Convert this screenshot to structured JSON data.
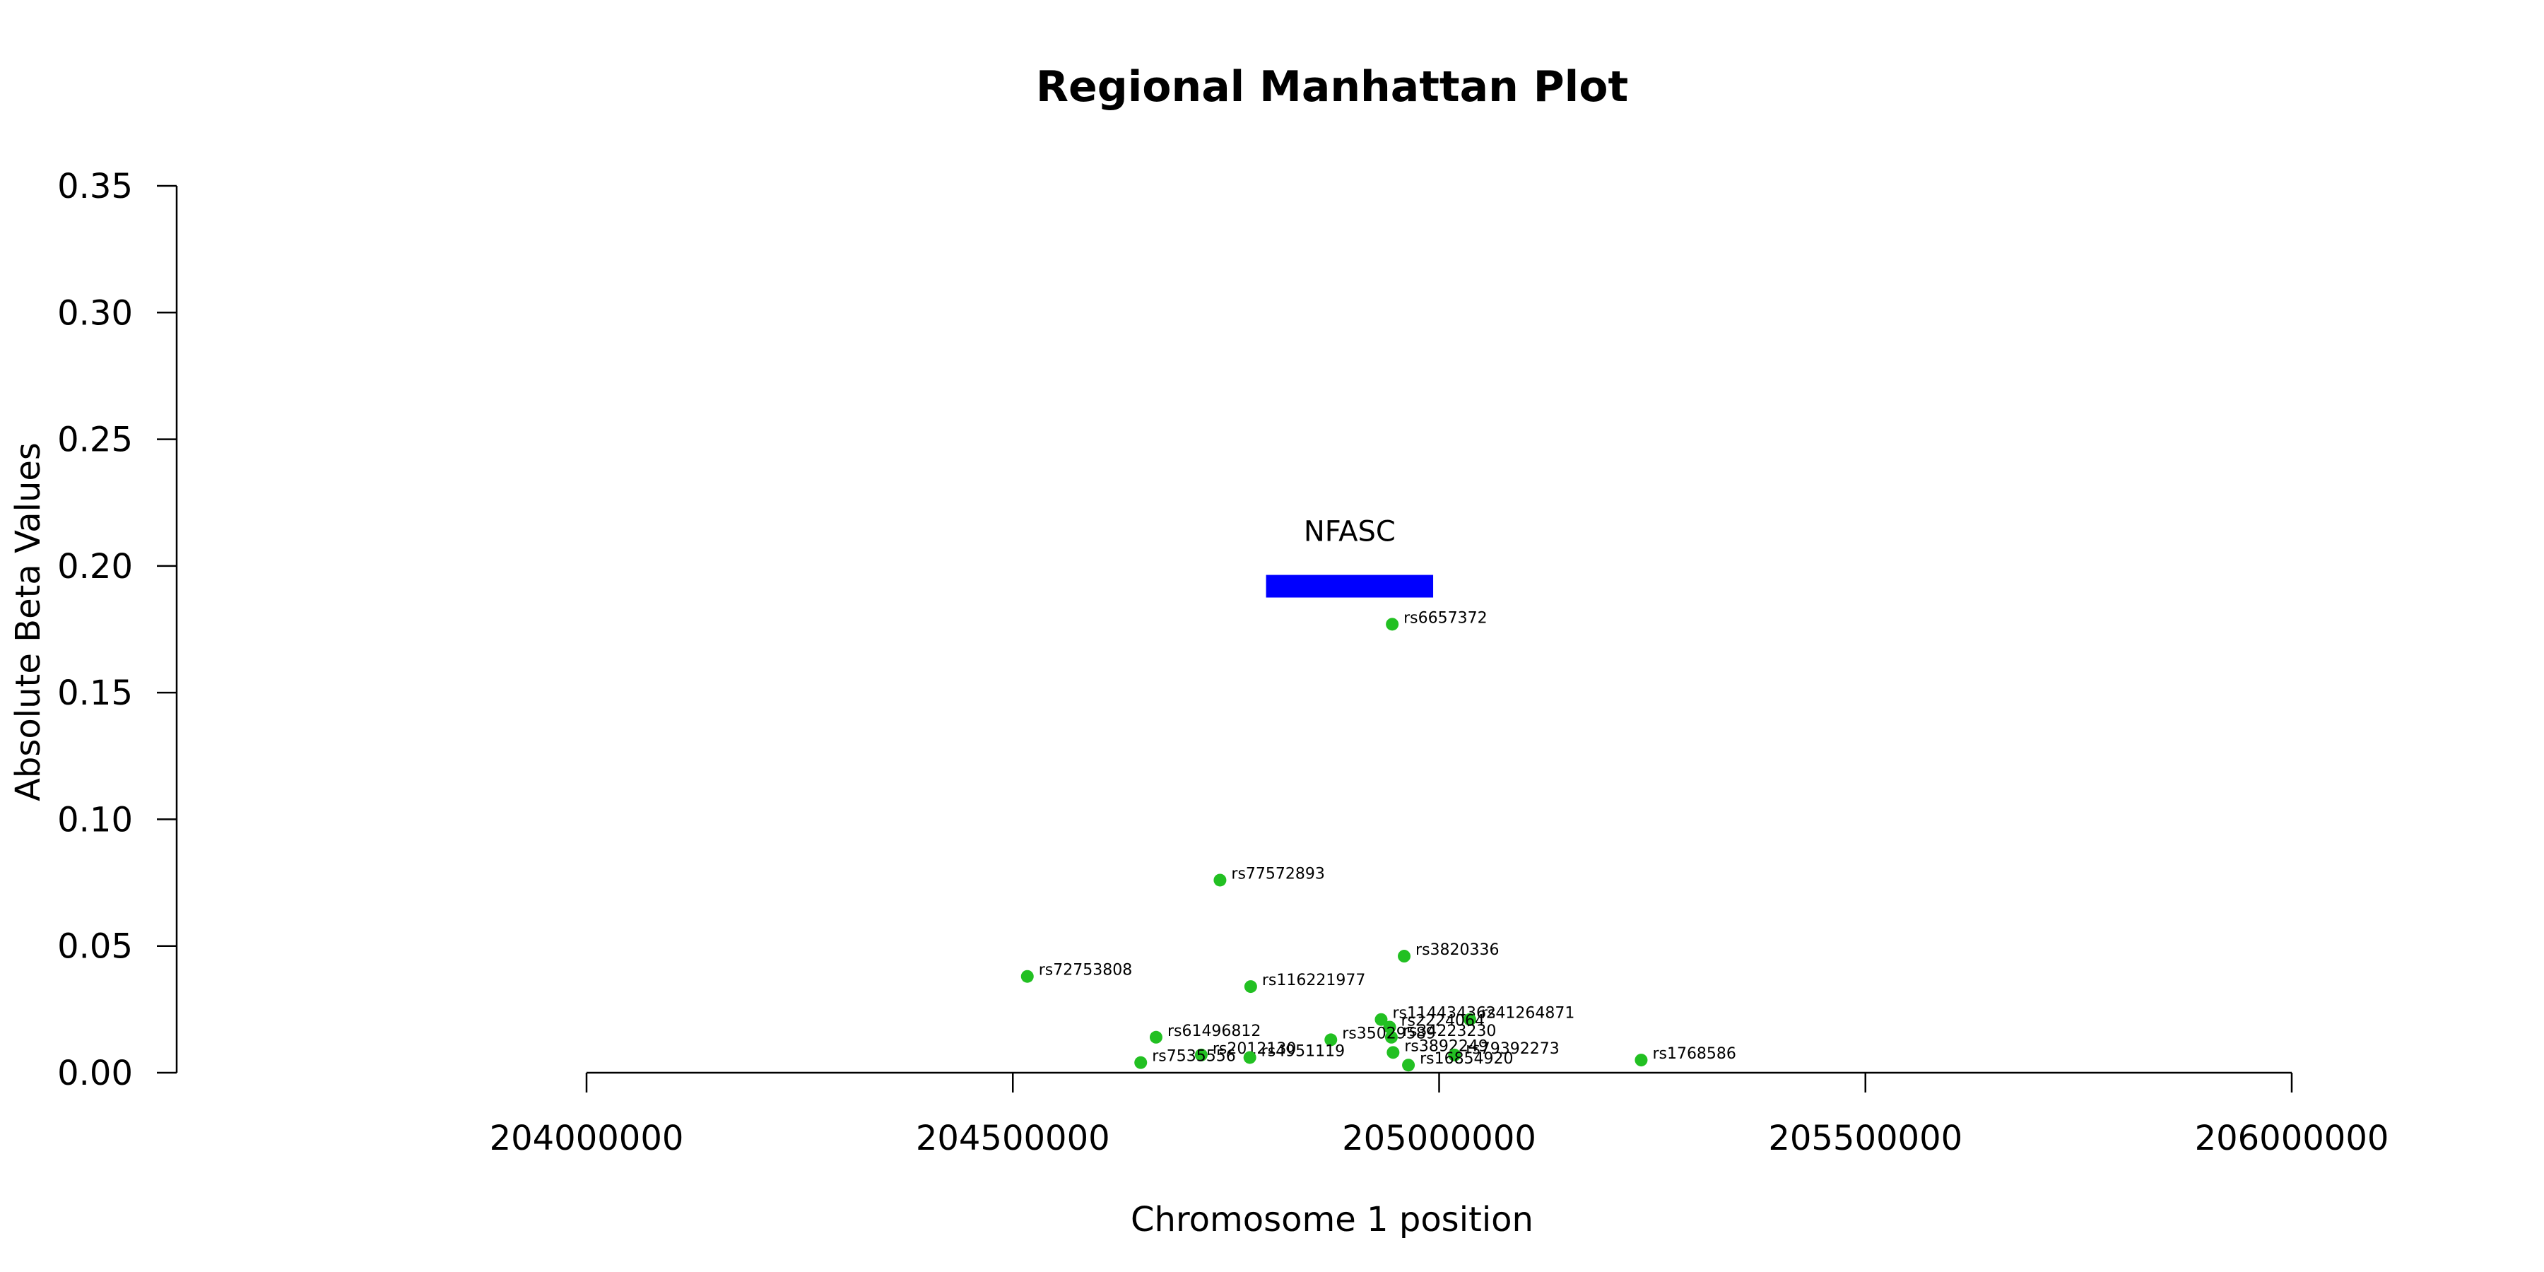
{
  "chart_data": {
    "type": "scatter",
    "title": "Regional Manhattan Plot",
    "xlabel": "Chromosome 1 position",
    "ylabel": "Absolute Beta Values",
    "xlim": [
      204000000,
      206000000
    ],
    "ylim": [
      0,
      0.35
    ],
    "x_ticks": [
      204000000,
      204500000,
      205000000,
      205500000,
      206000000
    ],
    "x_tick_labels": [
      "204000000",
      "204500000",
      "205000000",
      "205500000",
      "206000000"
    ],
    "y_ticks": [
      0.0,
      0.05,
      0.1,
      0.15,
      0.2,
      0.25,
      0.3,
      0.35
    ],
    "y_tick_labels": [
      "0.00",
      "0.05",
      "0.10",
      "0.15",
      "0.20",
      "0.25",
      "0.30",
      "0.35"
    ],
    "grid": false,
    "point_color": "#22c022",
    "gene_color": "#0000ff",
    "gene": {
      "name": "NFASC",
      "start": 204797000,
      "end": 204993000,
      "y": 0.192
    },
    "points": [
      {
        "label": "rs6657372",
        "x": 204945000,
        "y": 0.177
      },
      {
        "label": "rs77572893",
        "x": 204743000,
        "y": 0.076
      },
      {
        "label": "rs3820336",
        "x": 204959000,
        "y": 0.046
      },
      {
        "label": "rs72753808",
        "x": 204517000,
        "y": 0.038
      },
      {
        "label": "rs116221977",
        "x": 204779000,
        "y": 0.034
      },
      {
        "label": "rs114434362",
        "x": 204932000,
        "y": 0.021
      },
      {
        "label": "rs41264871",
        "x": 205036000,
        "y": 0.021
      },
      {
        "label": "rs2224064",
        "x": 204942000,
        "y": 0.018
      },
      {
        "label": "rs34223230",
        "x": 204944000,
        "y": 0.014
      },
      {
        "label": "rs35029589",
        "x": 204873000,
        "y": 0.013
      },
      {
        "label": "rs61496812",
        "x": 204668000,
        "y": 0.014
      },
      {
        "label": "rs3892249",
        "x": 204946000,
        "y": 0.008
      },
      {
        "label": "rs79392273",
        "x": 205018000,
        "y": 0.007
      },
      {
        "label": "rs2012130",
        "x": 204721000,
        "y": 0.007
      },
      {
        "label": "rs4951119",
        "x": 204778000,
        "y": 0.006
      },
      {
        "label": "rs1768586",
        "x": 205237000,
        "y": 0.005
      },
      {
        "label": "rs7535556",
        "x": 204650000,
        "y": 0.004
      },
      {
        "label": "rs16854920",
        "x": 204964000,
        "y": 0.003
      }
    ]
  }
}
